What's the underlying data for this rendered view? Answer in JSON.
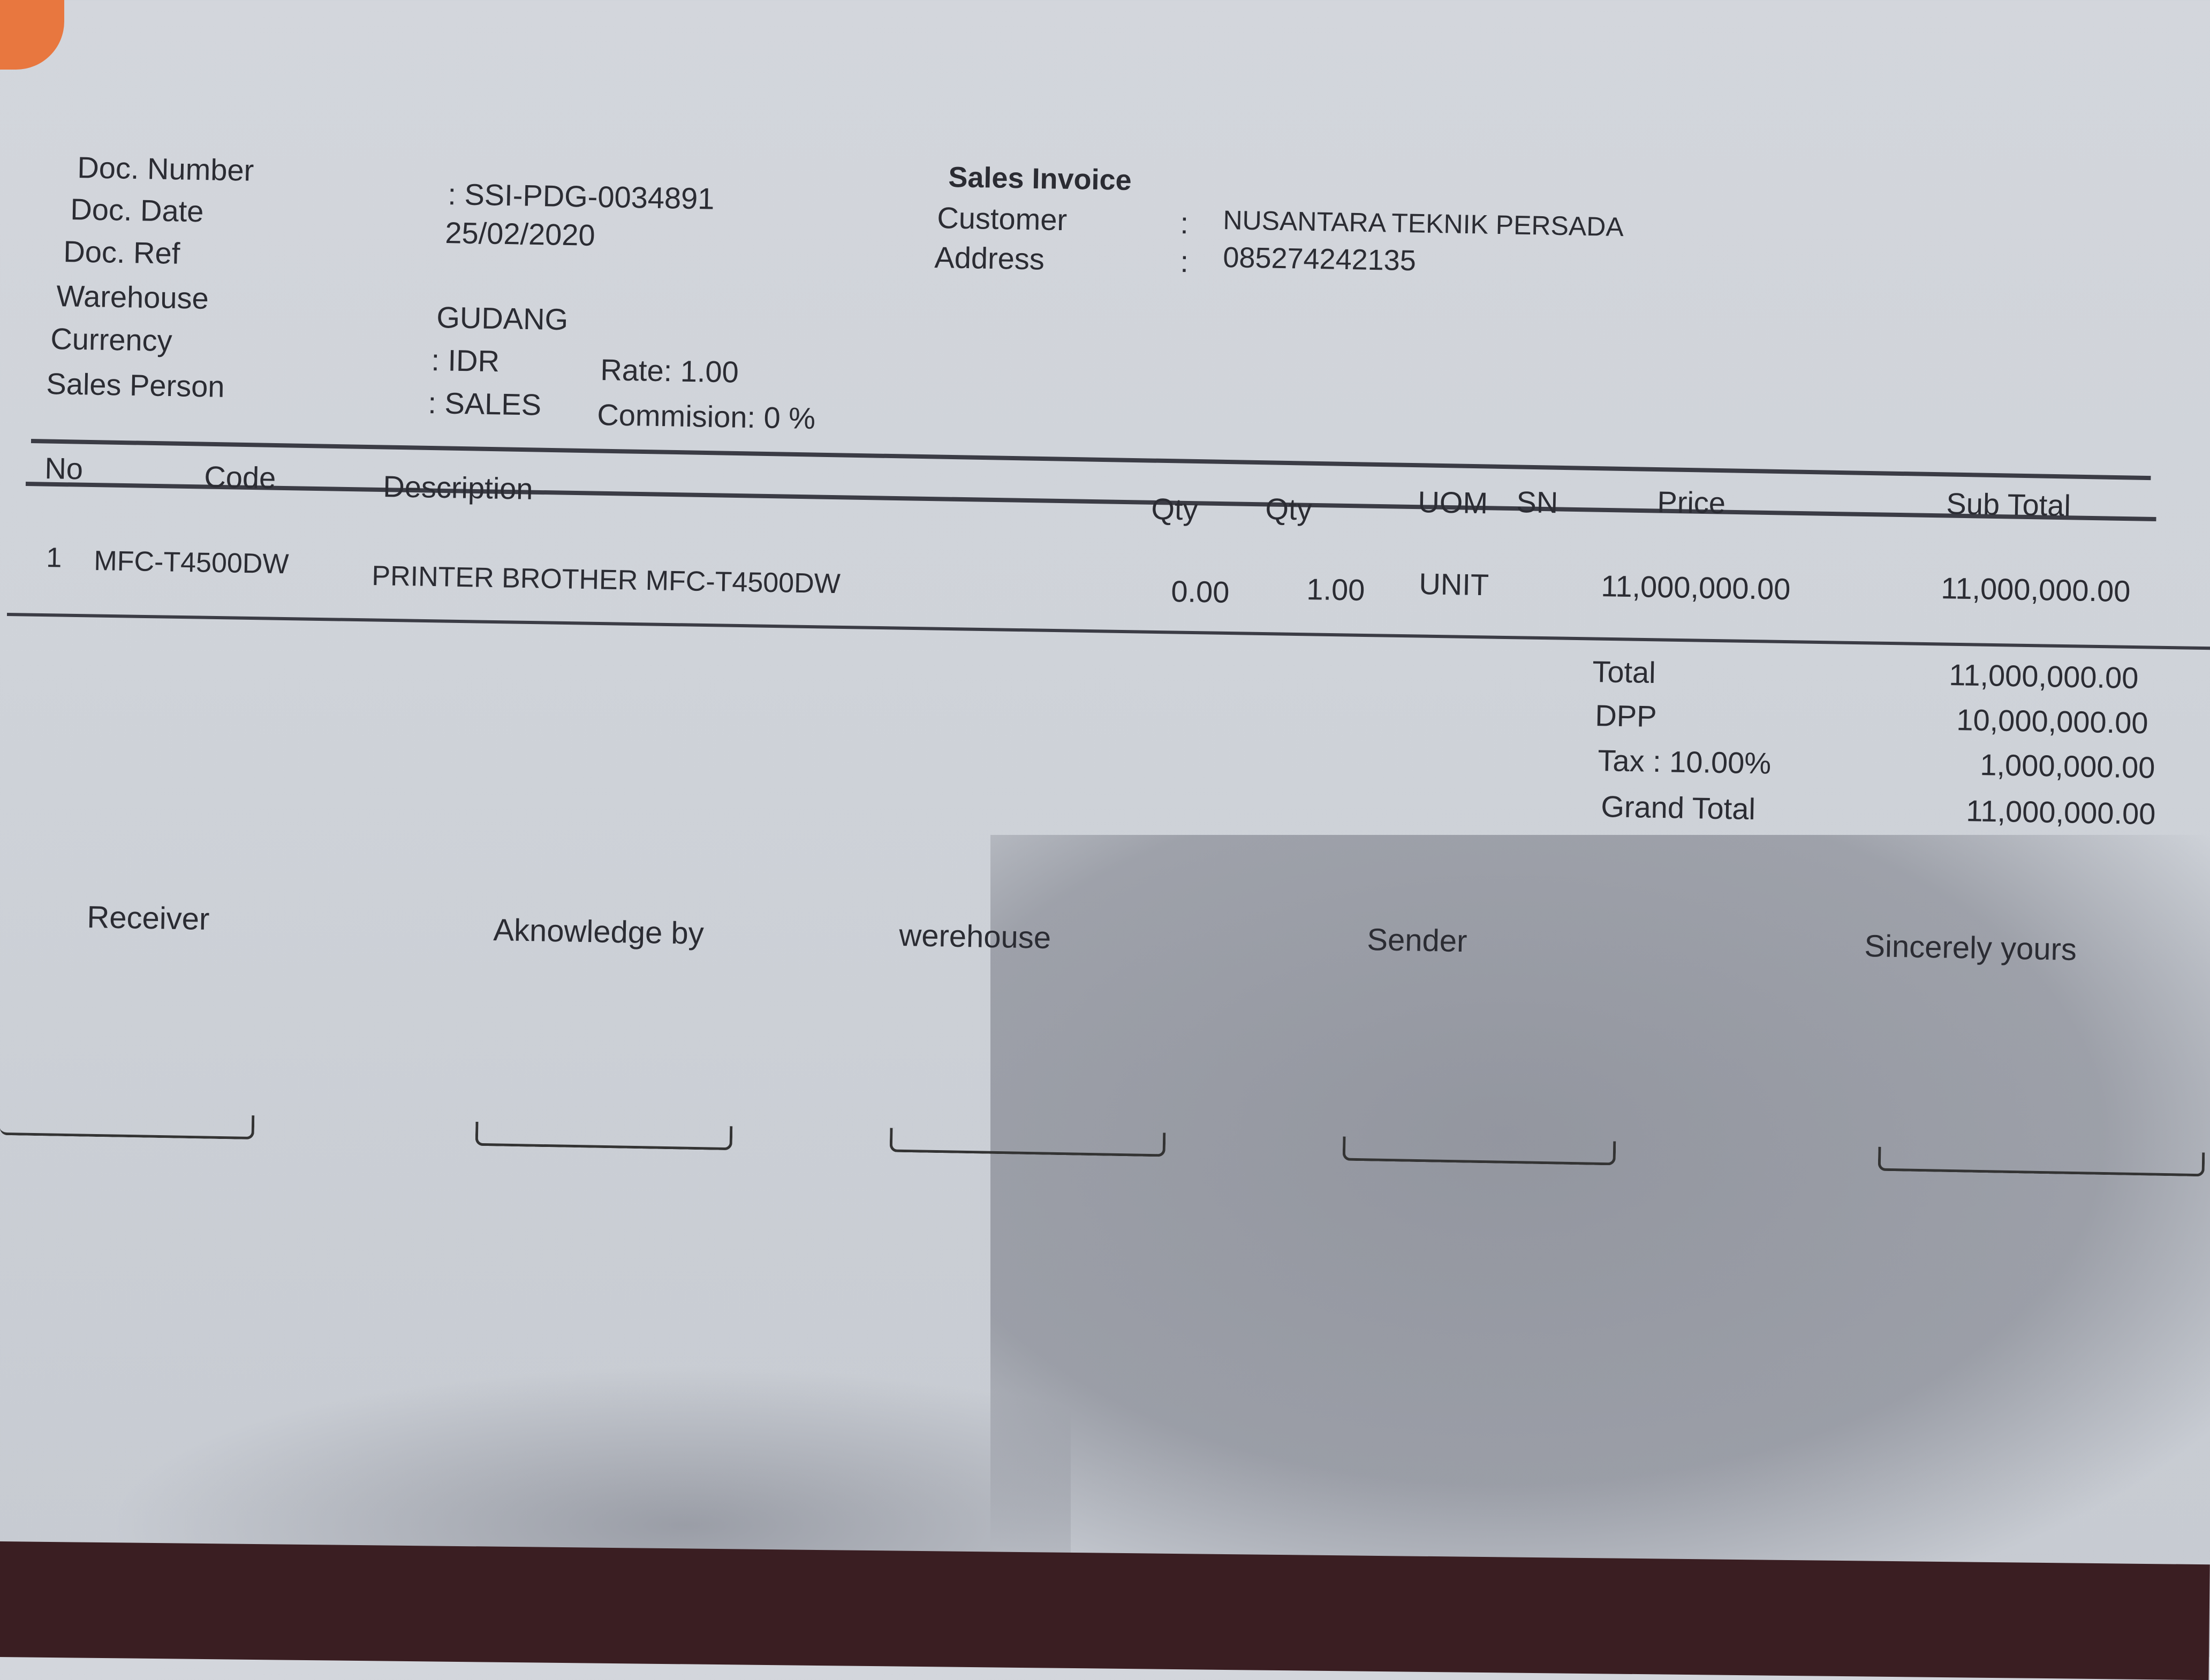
{
  "header": {
    "title": "Sales Invoice",
    "fields": [
      {
        "label": "Doc. Number",
        "value": ": SSI-PDG-0034891"
      },
      {
        "label": "Doc. Date",
        "value": "25/02/2020"
      },
      {
        "label": "Doc. Ref",
        "value": ""
      },
      {
        "label": "Warehouse",
        "value": "GUDANG"
      },
      {
        "label": "Currency",
        "value": ": IDR"
      },
      {
        "label": "Sales Person",
        "value": ": SALES"
      }
    ],
    "rate": "Rate: 1.00",
    "commission": "Commision: 0 %",
    "customer_label": "Customer",
    "customer_value": "NUSANTARA TEKNIK PERSADA",
    "address_label": "Address",
    "address_value": "085274242135",
    "colon": ":"
  },
  "table": {
    "columns": [
      "No",
      "Code",
      "Description",
      "Qty",
      "Qty",
      "UOM",
      "SN",
      "Price",
      "Sub Total"
    ],
    "rows": [
      {
        "no": "1",
        "code": "MFC-T4500DW",
        "description": "PRINTER BROTHER MFC-T4500DW",
        "qty1": "0.00",
        "qty2": "1.00",
        "uom": "UNIT",
        "sn": "",
        "price": "11,000,000.00",
        "subtotal": "11,000,000.00"
      }
    ]
  },
  "totals": [
    {
      "label": "Total",
      "value": "11,000,000.00"
    },
    {
      "label": "DPP",
      "value": "10,000,000.00"
    },
    {
      "label": "Tax : 10.00%",
      "value": "1,000,000.00"
    },
    {
      "label": "Grand Total",
      "value": "11,000,000.00"
    }
  ],
  "signatures": [
    "Receiver",
    "Aknowledge by",
    "werehouse",
    "Sender",
    "Sincerely yours"
  ],
  "colors": {
    "paper": "#d3d6dc",
    "ink": "#2b2c33",
    "shadow": "#6e717c",
    "table_band": "#3a1e22",
    "corner": "#e8773f"
  }
}
